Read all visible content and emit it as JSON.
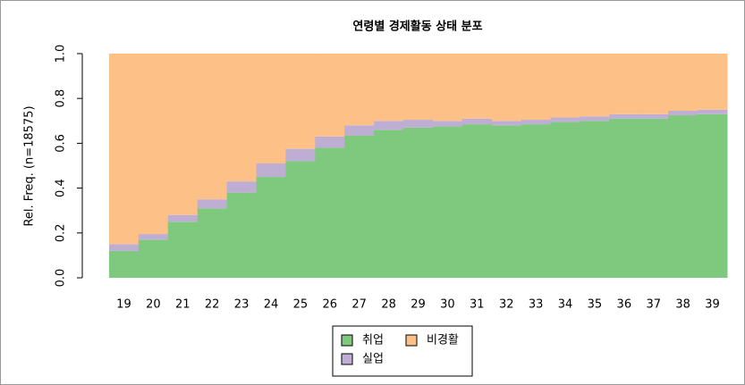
{
  "chart_data": {
    "type": "bar",
    "stacked": true,
    "title": "연령별 경제활동 상태 분포",
    "y_label": "Rel. Freq. (n=18575)",
    "categories": [
      "19",
      "20",
      "21",
      "22",
      "23",
      "24",
      "25",
      "26",
      "27",
      "28",
      "29",
      "30",
      "31",
      "32",
      "33",
      "34",
      "35",
      "36",
      "37",
      "38",
      "39"
    ],
    "series": [
      {
        "name": "취업",
        "color": "#7fc97f",
        "values": [
          0.12,
          0.17,
          0.25,
          0.31,
          0.38,
          0.45,
          0.52,
          0.58,
          0.635,
          0.66,
          0.67,
          0.675,
          0.685,
          0.68,
          0.685,
          0.695,
          0.7,
          0.71,
          0.71,
          0.725,
          0.73
        ]
      },
      {
        "name": "실업",
        "color": "#beaed4",
        "values": [
          0.03,
          0.025,
          0.03,
          0.04,
          0.05,
          0.06,
          0.055,
          0.05,
          0.045,
          0.04,
          0.035,
          0.025,
          0.025,
          0.02,
          0.02,
          0.02,
          0.02,
          0.02,
          0.02,
          0.02,
          0.02
        ]
      },
      {
        "name": "비경활",
        "color": "#fdc086",
        "values": [
          0.85,
          0.805,
          0.72,
          0.65,
          0.57,
          0.49,
          0.425,
          0.37,
          0.32,
          0.3,
          0.295,
          0.3,
          0.29,
          0.3,
          0.295,
          0.285,
          0.28,
          0.27,
          0.27,
          0.255,
          0.25
        ]
      }
    ],
    "ylim": [
      0,
      1
    ],
    "yticks": [
      {
        "value": 0,
        "label": "0.0"
      },
      0.2,
      0.4,
      0.6,
      0.8,
      {
        "value": 1,
        "label": "1.0"
      }
    ]
  }
}
